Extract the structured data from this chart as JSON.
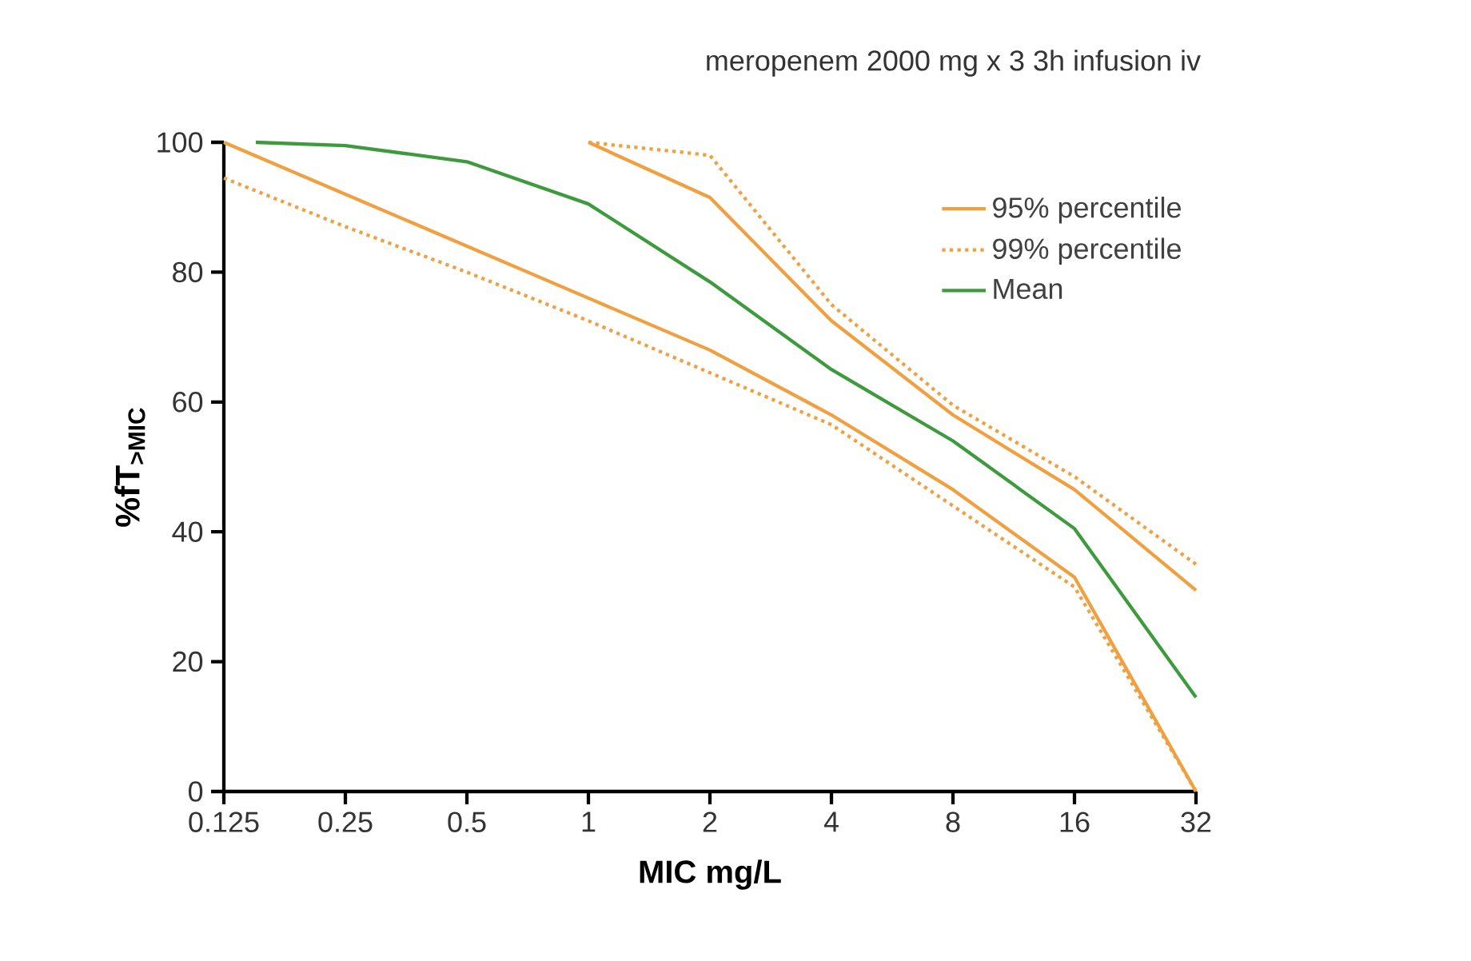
{
  "chart_data": {
    "type": "line",
    "title": "meropenem 2000 mg x 3  3h infusion iv",
    "xlabel": "MIC mg/L",
    "ylabel": "%fT$_{>MIC}$",
    "log": "x",
    "xlim": [
      0.125,
      32
    ],
    "xticks": [
      0.125,
      0.25,
      0.5,
      1,
      2,
      4,
      8,
      16,
      32
    ],
    "ylim": [
      0,
      100
    ],
    "yticks": [
      0,
      20,
      40,
      60,
      80,
      100
    ],
    "grid": false,
    "legend": "top right",
    "marker": "none",
    "series": [
      {
        "name": "95% percentile",
        "color": "#f0a040",
        "line_style": "solid",
        "x": [
          0.125,
          0.25,
          0.5,
          1,
          2,
          4,
          8,
          16,
          32
        ],
        "values": [
          100,
          92,
          84,
          76,
          68,
          58,
          46.5,
          33,
          0
        ]
      },
      {
        "color": "#f0a040",
        "line_style": "solid",
        "x": [
          1,
          2,
          4,
          8,
          16,
          32
        ],
        "values": [
          100,
          91.5,
          72.5,
          58,
          46.5,
          31
        ]
      },
      {
        "name": "99% percentile",
        "color": "#f0a040",
        "line_style": "dotted",
        "x": [
          0.125,
          0.25,
          0.5,
          1,
          2,
          4,
          8,
          16,
          32
        ],
        "values": [
          94.5,
          87,
          80,
          72.5,
          64.5,
          56.5,
          44,
          31.5,
          0
        ]
      },
      {
        "color": "#f0a040",
        "line_style": "dotted",
        "x": [
          1,
          2,
          4,
          8,
          16,
          32
        ],
        "values": [
          100,
          98,
          75,
          59.5,
          48.5,
          35
        ]
      },
      {
        "name": "Mean",
        "color": "#3d9a3d",
        "line_style": "solid",
        "x": [
          0.15,
          0.25,
          0.5,
          1,
          2,
          4,
          8,
          16,
          32
        ],
        "values": [
          100,
          99.5,
          97,
          90.5,
          78.5,
          65,
          54,
          40.5,
          14.5
        ]
      }
    ]
  }
}
